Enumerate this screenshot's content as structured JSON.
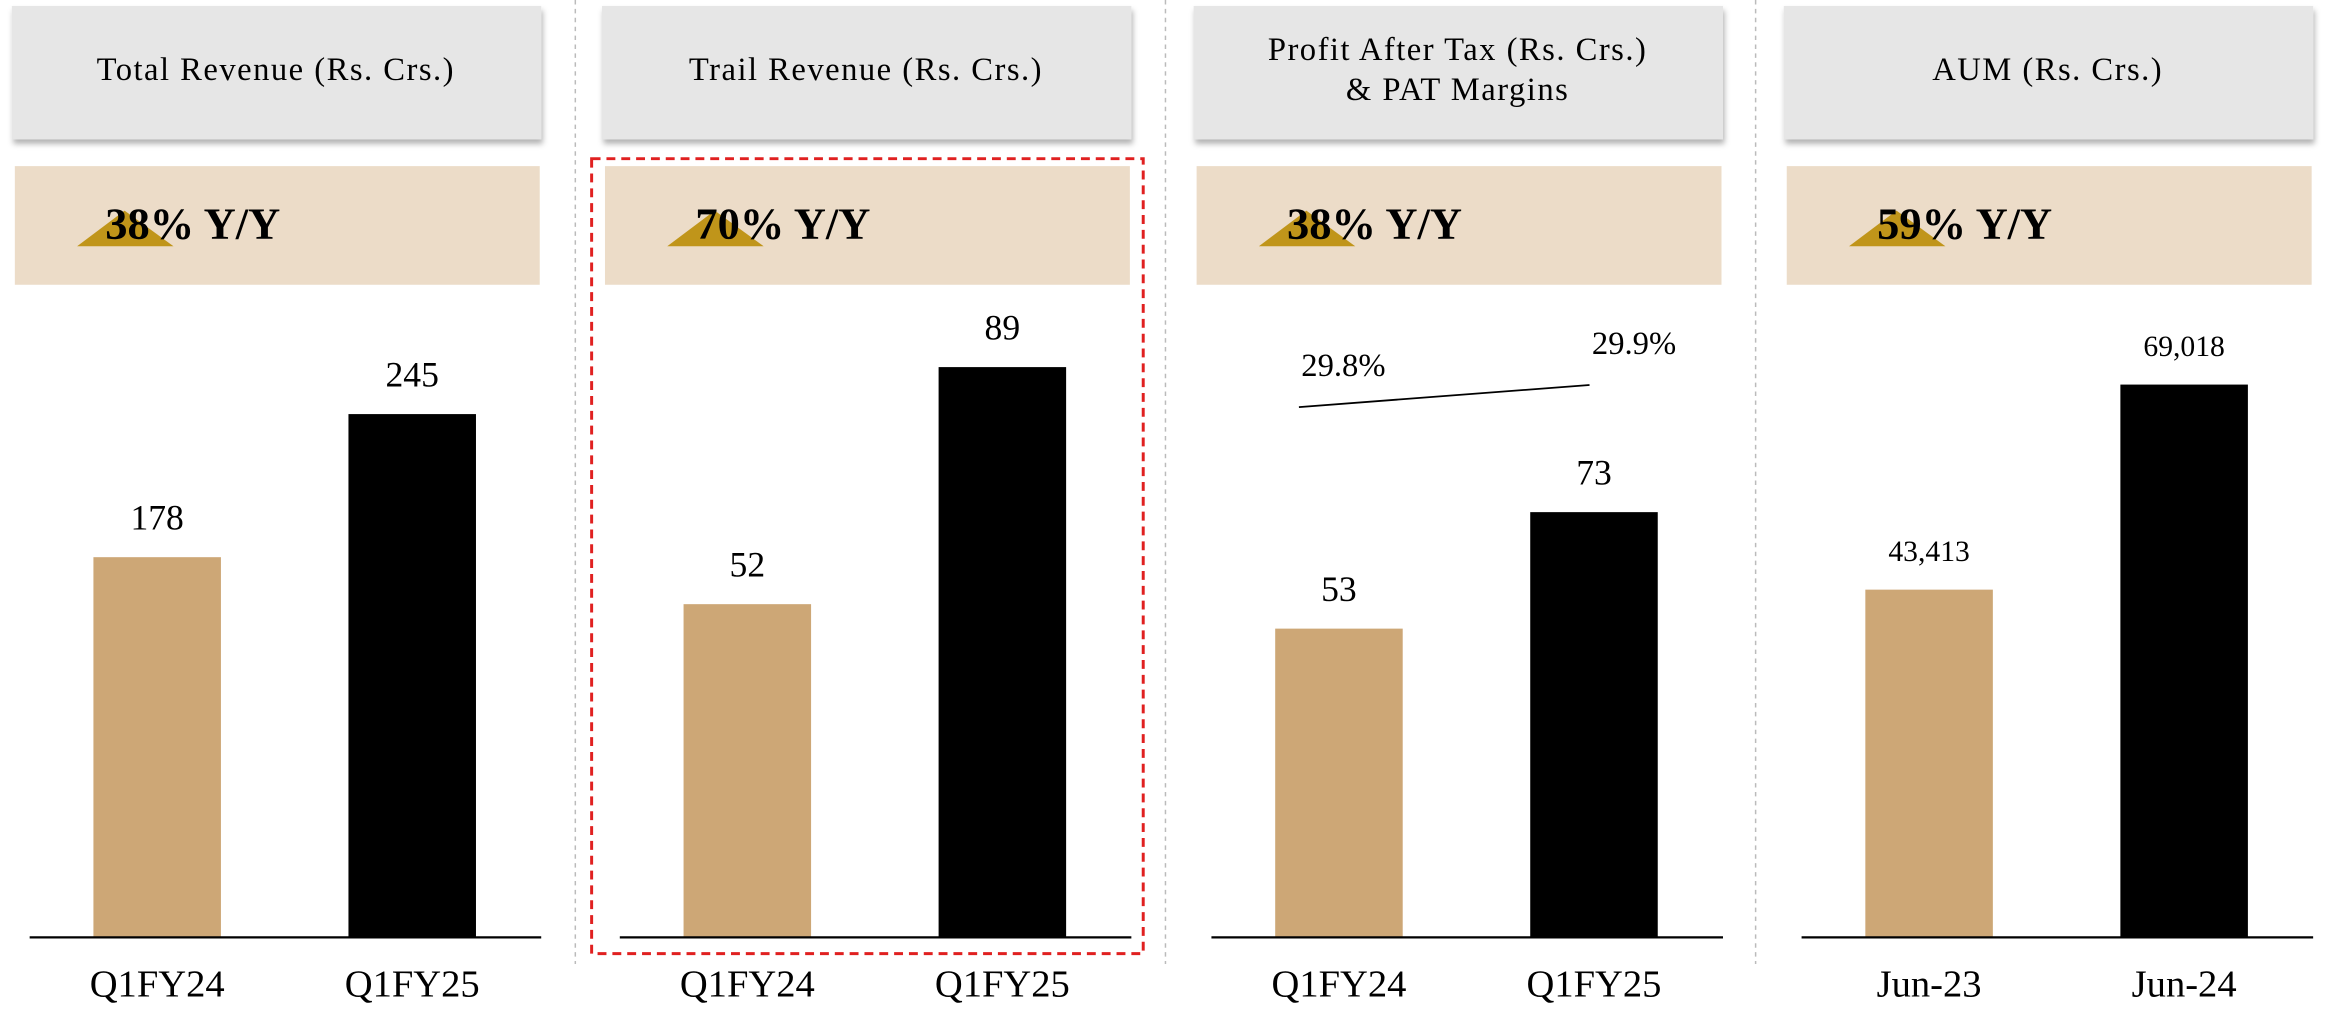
{
  "chart_data": [
    {
      "type": "bar",
      "title": [
        "Total Revenue (Rs. Crs.)"
      ],
      "badge": "38% Y/Y",
      "categories": [
        "Q1FY24",
        "Q1FY25"
      ],
      "values": [
        178,
        245
      ],
      "colors": [
        "#cda776",
        "#000000"
      ],
      "ylim": [
        0,
        300
      ]
    },
    {
      "type": "bar",
      "title": [
        "Trail Revenue (Rs. Crs.)"
      ],
      "badge": "70% Y/Y",
      "categories": [
        "Q1FY24",
        "Q1FY25"
      ],
      "values": [
        52,
        89
      ],
      "colors": [
        "#cda776",
        "#000000"
      ],
      "ylim": [
        0,
        100
      ],
      "highlight": true
    },
    {
      "type": "bar",
      "title": [
        "Profit After Tax (Rs. Crs.)",
        "& PAT Margins"
      ],
      "badge": "38% Y/Y",
      "categories": [
        "Q1FY24",
        "Q1FY25"
      ],
      "values": [
        53,
        73
      ],
      "colors": [
        "#cda776",
        "#000000"
      ],
      "ylim": [
        0,
        110
      ],
      "line": {
        "values": [
          29.8,
          29.9
        ],
        "value_labels": [
          "29.8%",
          "29.9%"
        ],
        "axis": "y2",
        "color": "#000000"
      },
      "y2lim": [
        27.4,
        30.3
      ]
    },
    {
      "type": "bar",
      "title": [
        "AUM (Rs. Crs.)"
      ],
      "badge": "59% Y/Y",
      "categories": [
        "Jun-23",
        "Jun-24"
      ],
      "values": [
        43413,
        69018
      ],
      "value_labels": [
        "43,413",
        "69,018"
      ],
      "colors": [
        "#cda776",
        "#000000"
      ],
      "ylim": [
        0,
        80000
      ]
    }
  ]
}
